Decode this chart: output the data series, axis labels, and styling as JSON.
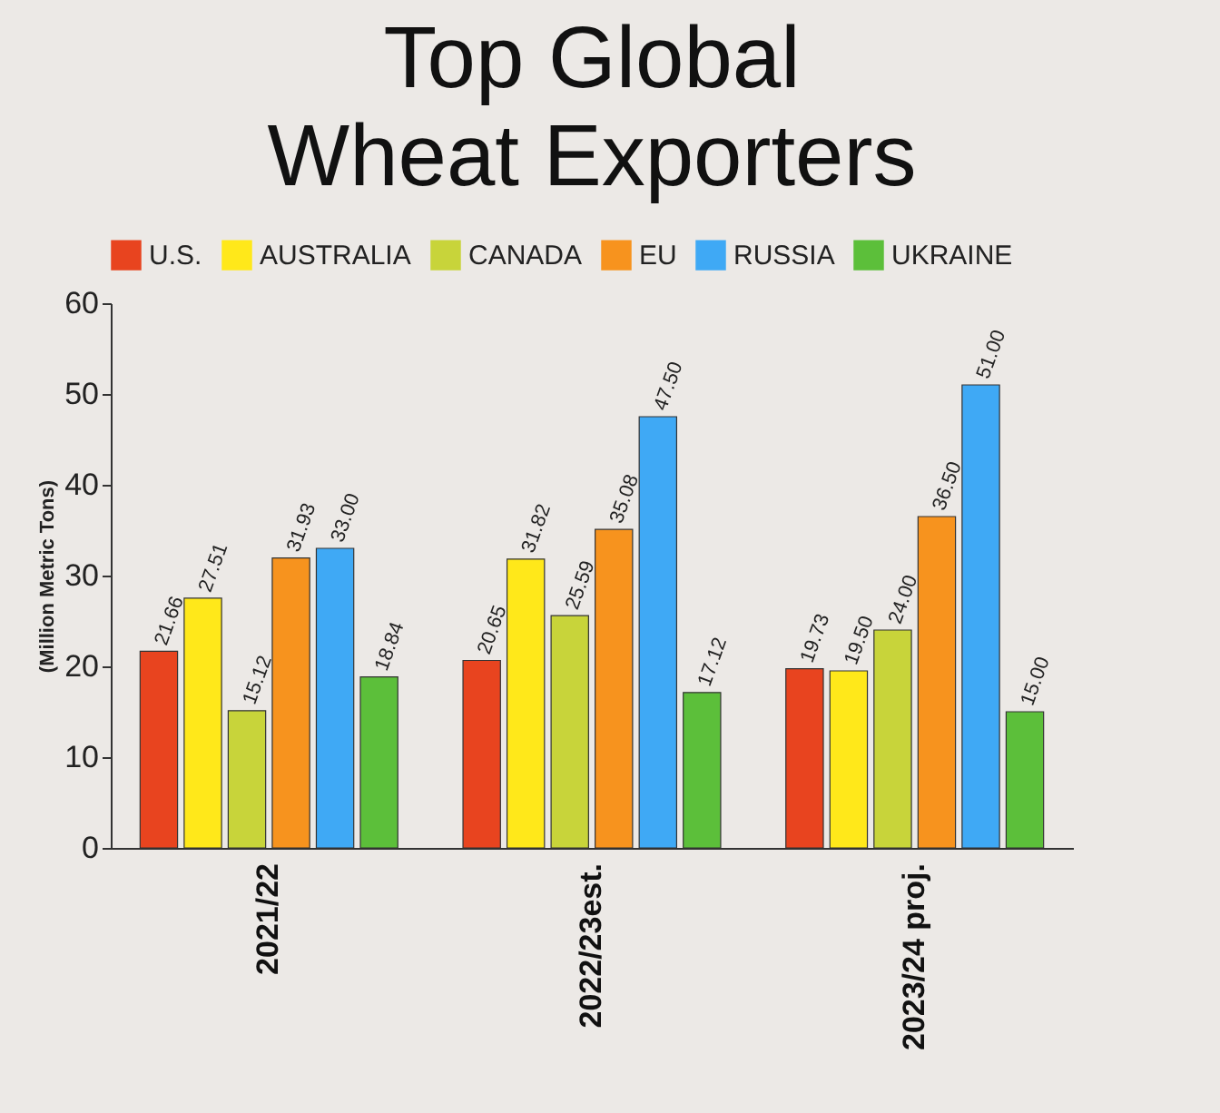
{
  "chart_data": {
    "type": "bar",
    "title": "Top Global Wheat Exporters",
    "ylabel": "(Million Metric Tons)",
    "categories": [
      "2021/22",
      "2022/23est.",
      "2023/24 proj."
    ],
    "series": [
      {
        "name": "U.S.",
        "color": "#e8441f",
        "values": [
          21.66,
          20.65,
          19.73
        ],
        "value_labels": [
          "21.66",
          "20.65",
          "19.73"
        ]
      },
      {
        "name": "AUSTRALIA",
        "color": "#ffe81a",
        "values": [
          27.51,
          31.82,
          19.5
        ],
        "value_labels": [
          "27.51",
          "31.82",
          "19.50"
        ]
      },
      {
        "name": "CANADA",
        "color": "#c8d43a",
        "values": [
          15.12,
          25.59,
          24.0
        ],
        "value_labels": [
          "15.12",
          "25.59",
          "24.00"
        ]
      },
      {
        "name": "EU",
        "color": "#f7931e",
        "values": [
          31.93,
          35.08,
          36.5
        ],
        "value_labels": [
          "31.93",
          "35.08",
          "36.50"
        ]
      },
      {
        "name": "RUSSIA",
        "color": "#3fa9f5",
        "values": [
          33.0,
          47.5,
          51.0
        ],
        "value_labels": [
          "33.00",
          "47.50",
          "51.00"
        ]
      },
      {
        "name": "UKRAINE",
        "color": "#5cbf3a",
        "values": [
          18.84,
          17.12,
          15.0
        ],
        "value_labels": [
          "18.84",
          "17.12",
          "15.00"
        ]
      }
    ],
    "ylim": [
      0,
      60
    ],
    "yticks": [
      0,
      10,
      20,
      30,
      40,
      50,
      60
    ],
    "grid": false,
    "legend": "top"
  }
}
